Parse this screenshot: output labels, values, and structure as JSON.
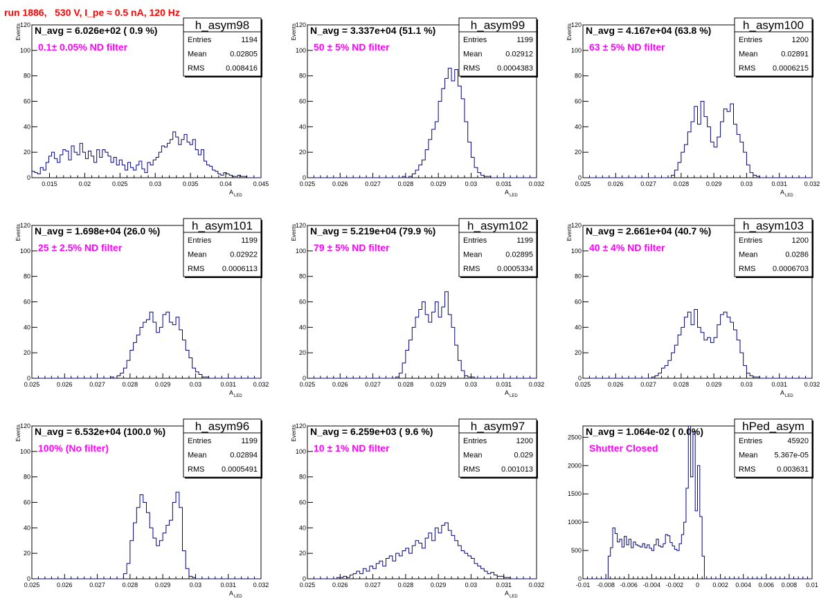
{
  "page": {
    "title": "run 1886,   530 V, I_pe ≈ 0.5 nA, 120 Hz"
  },
  "colors": {
    "hist": "#000080",
    "label": "#ff00ff",
    "title": "#ff0000"
  },
  "chart_data": [
    {
      "type": "bar",
      "hist": "h_asym98",
      "navg": "N_avg = 6.026e+02 ( 0.9 %)",
      "filter": "0.1± 0.05% ND filter",
      "stats": {
        "entries": "1194",
        "mean": "0.02805",
        "rms": "0.008416"
      },
      "xlabel": "A",
      "xlabel_sub": "LED",
      "ylabel": "Events",
      "xlim": [
        0.0125,
        0.045
      ],
      "ylim": [
        0,
        120
      ],
      "xticks": [
        0.015,
        0.02,
        0.025,
        0.03,
        0.035,
        0.04,
        0.045
      ],
      "xticklabels": [
        "0.015",
        "0.02",
        "0.025",
        "0.03",
        "0.035",
        "0.04",
        "0.045"
      ],
      "yticks": [
        0,
        20,
        40,
        60,
        80,
        100,
        120
      ],
      "yticklabels": [
        "0",
        "20",
        "40",
        "60",
        "80",
        "100",
        "120"
      ],
      "bins": {
        "start": 0.0125,
        "width": 0.0004,
        "values": [
          5,
          4,
          3,
          8,
          6,
          12,
          17,
          20,
          15,
          12,
          18,
          22,
          21,
          14,
          25,
          20,
          18,
          27,
          20,
          15,
          21,
          17,
          12,
          22,
          16,
          22,
          20,
          17,
          12,
          16,
          10,
          14,
          10,
          6,
          12,
          8,
          6,
          10,
          13,
          7,
          4,
          12,
          10,
          14,
          16,
          20,
          25,
          24,
          27,
          30,
          36,
          32,
          26,
          30,
          34,
          28,
          26,
          30,
          22,
          18,
          22,
          13,
          10,
          9,
          6,
          5,
          3,
          2,
          4,
          3,
          2,
          1,
          1,
          2,
          1,
          1,
          0,
          0,
          0,
          0,
          0,
          0
        ]
      }
    },
    {
      "type": "bar",
      "hist": "h_asym99",
      "navg": "N_avg = 3.337e+04 (51.1 %)",
      "filter": "50 ± 5% ND filter",
      "stats": {
        "entries": "1199",
        "mean": "0.02912",
        "rms": "0.0004383"
      },
      "xlabel": "A",
      "xlabel_sub": "LED",
      "ylabel": "Events",
      "xlim": [
        0.025,
        0.032
      ],
      "ylim": [
        0,
        120
      ],
      "xticks": [
        0.025,
        0.026,
        0.027,
        0.028,
        0.029,
        0.03,
        0.031,
        0.032
      ],
      "xticklabels": [
        "0.025",
        "0.026",
        "0.027",
        "0.028",
        "0.029",
        "0.03",
        "0.031",
        "0.032"
      ],
      "yticks": [
        0,
        20,
        40,
        60,
        80,
        100,
        120
      ],
      "yticklabels": [
        "0",
        "20",
        "40",
        "60",
        "80",
        "100",
        "120"
      ],
      "bins": {
        "start": 0.025,
        "width": 0.0001,
        "values": [
          0,
          0,
          0,
          0,
          0,
          0,
          0,
          0,
          0,
          0,
          0,
          0,
          0,
          0,
          0,
          0,
          0,
          0,
          0,
          0,
          0,
          0,
          0,
          0,
          0,
          0,
          0,
          0,
          0,
          1,
          0,
          1,
          3,
          6,
          10,
          14,
          22,
          30,
          38,
          44,
          60,
          70,
          78,
          86,
          76,
          85,
          72,
          62,
          44,
          28,
          16,
          8,
          4,
          2,
          1,
          1,
          0,
          0,
          0,
          0,
          0,
          0,
          0,
          0,
          0,
          0,
          0,
          0,
          0,
          0
        ]
      }
    },
    {
      "type": "bar",
      "hist": "h_asym100",
      "navg": "N_avg = 4.167e+04 (63.8 %)",
      "filter": "63 ± 5% ND filter",
      "stats": {
        "entries": "1200",
        "mean": "0.02891",
        "rms": "0.0006215"
      },
      "xlabel": "A",
      "xlabel_sub": "LED",
      "ylabel": "Events",
      "xlim": [
        0.025,
        0.032
      ],
      "ylim": [
        0,
        120
      ],
      "xticks": [
        0.025,
        0.026,
        0.027,
        0.028,
        0.029,
        0.03,
        0.031,
        0.032
      ],
      "xticklabels": [
        "0.025",
        "0.026",
        "0.027",
        "0.028",
        "0.029",
        "0.03",
        "0.031",
        "0.032"
      ],
      "yticks": [
        0,
        20,
        40,
        60,
        80,
        100,
        120
      ],
      "yticklabels": [
        "0",
        "20",
        "40",
        "60",
        "80",
        "100",
        "120"
      ],
      "bins": {
        "start": 0.025,
        "width": 0.0001,
        "values": [
          0,
          0,
          0,
          0,
          0,
          0,
          0,
          0,
          0,
          0,
          0,
          0,
          0,
          0,
          0,
          0,
          0,
          0,
          0,
          0,
          0,
          0,
          0,
          0,
          0,
          0,
          0,
          2,
          6,
          12,
          20,
          26,
          36,
          44,
          56,
          42,
          60,
          48,
          40,
          28,
          24,
          32,
          44,
          54,
          52,
          58,
          42,
          34,
          28,
          20,
          10,
          4,
          2,
          1,
          0,
          0,
          0,
          0,
          0,
          0,
          0,
          0,
          0,
          0,
          0,
          0,
          0,
          0,
          0,
          0
        ]
      }
    },
    {
      "type": "bar",
      "hist": "h_asym101",
      "navg": "N_avg = 1.698e+04 (26.0 %)",
      "filter": "25 ± 2.5% ND filter",
      "stats": {
        "entries": "1199",
        "mean": "0.02922",
        "rms": "0.0006113"
      },
      "xlabel": "A",
      "xlabel_sub": "LED",
      "ylabel": "Events",
      "xlim": [
        0.025,
        0.032
      ],
      "ylim": [
        0,
        120
      ],
      "xticks": [
        0.025,
        0.026,
        0.027,
        0.028,
        0.029,
        0.03,
        0.031,
        0.032
      ],
      "xticklabels": [
        "0.025",
        "0.026",
        "0.027",
        "0.028",
        "0.029",
        "0.03",
        "0.031",
        "0.032"
      ],
      "yticks": [
        0,
        20,
        40,
        60,
        80,
        100,
        120
      ],
      "yticklabels": [
        "0",
        "20",
        "40",
        "60",
        "80",
        "100",
        "120"
      ],
      "bins": {
        "start": 0.025,
        "width": 0.0001,
        "values": [
          0,
          0,
          0,
          0,
          0,
          0,
          0,
          0,
          0,
          0,
          0,
          0,
          0,
          0,
          0,
          0,
          0,
          0,
          0,
          0,
          0,
          0,
          0,
          0,
          1,
          0,
          2,
          4,
          8,
          14,
          22,
          28,
          34,
          40,
          44,
          46,
          52,
          44,
          36,
          40,
          50,
          52,
          44,
          42,
          48,
          38,
          30,
          22,
          16,
          8,
          5,
          3,
          1,
          1,
          0,
          0,
          0,
          0,
          0,
          0,
          0,
          0,
          0,
          0,
          0,
          0,
          0,
          0,
          0,
          0
        ]
      }
    },
    {
      "type": "bar",
      "hist": "h_asym102",
      "navg": "N_avg = 5.219e+04 (79.9 %)",
      "filter": "79 ± 5% ND filter",
      "stats": {
        "entries": "1199",
        "mean": "0.02895",
        "rms": "0.0005334"
      },
      "xlabel": "A",
      "xlabel_sub": "LED",
      "ylabel": "Events",
      "xlim": [
        0.025,
        0.032
      ],
      "ylim": [
        0,
        120
      ],
      "xticks": [
        0.025,
        0.026,
        0.027,
        0.028,
        0.029,
        0.03,
        0.031,
        0.032
      ],
      "xticklabels": [
        "0.025",
        "0.026",
        "0.027",
        "0.028",
        "0.029",
        "0.03",
        "0.031",
        "0.032"
      ],
      "yticks": [
        0,
        20,
        40,
        60,
        80,
        100,
        120
      ],
      "yticklabels": [
        "0",
        "20",
        "40",
        "60",
        "80",
        "100",
        "120"
      ],
      "bins": {
        "start": 0.025,
        "width": 0.0001,
        "values": [
          0,
          0,
          0,
          0,
          0,
          0,
          0,
          0,
          0,
          0,
          0,
          0,
          0,
          0,
          0,
          0,
          0,
          0,
          0,
          0,
          0,
          0,
          0,
          0,
          0,
          0,
          0,
          1,
          4,
          12,
          22,
          30,
          40,
          48,
          54,
          60,
          50,
          44,
          52,
          60,
          48,
          56,
          68,
          50,
          40,
          26,
          14,
          6,
          2,
          1,
          1,
          0,
          0,
          0,
          0,
          0,
          0,
          0,
          0,
          0,
          0,
          0,
          0,
          0,
          0,
          0,
          0,
          0,
          0,
          0
        ]
      }
    },
    {
      "type": "bar",
      "hist": "h_asym103",
      "navg": "N_avg = 2.661e+04 (40.7 %)",
      "filter": "40 ± 4% ND filter",
      "stats": {
        "entries": "1200",
        "mean": "0.0286",
        "rms": "0.0006703"
      },
      "xlabel": "A",
      "xlabel_sub": "LED",
      "ylabel": "Events",
      "xlim": [
        0.025,
        0.032
      ],
      "ylim": [
        0,
        120
      ],
      "xticks": [
        0.025,
        0.026,
        0.027,
        0.028,
        0.029,
        0.03,
        0.031,
        0.032
      ],
      "xticklabels": [
        "0.025",
        "0.026",
        "0.027",
        "0.028",
        "0.029",
        "0.03",
        "0.031",
        "0.032"
      ],
      "yticks": [
        0,
        20,
        40,
        60,
        80,
        100,
        120
      ],
      "yticklabels": [
        "0",
        "20",
        "40",
        "60",
        "80",
        "100",
        "120"
      ],
      "bins": {
        "start": 0.025,
        "width": 0.0001,
        "values": [
          0,
          0,
          0,
          0,
          0,
          0,
          0,
          0,
          0,
          0,
          0,
          0,
          0,
          0,
          0,
          0,
          0,
          0,
          0,
          0,
          0,
          1,
          2,
          4,
          8,
          10,
          14,
          20,
          26,
          34,
          40,
          48,
          52,
          42,
          54,
          40,
          36,
          30,
          32,
          28,
          32,
          42,
          50,
          52,
          48,
          44,
          38,
          30,
          20,
          10,
          4,
          2,
          1,
          1,
          0,
          0,
          0,
          0,
          0,
          0,
          0,
          0,
          0,
          0,
          0,
          0,
          0,
          0,
          0,
          0
        ]
      }
    },
    {
      "type": "bar",
      "hist": "h_asym96",
      "navg": "N_avg = 6.532e+04 (100.0 %)",
      "filter": "100% (No filter)",
      "stats": {
        "entries": "1199",
        "mean": "0.02894",
        "rms": "0.0005491"
      },
      "xlabel": "A",
      "xlabel_sub": "LED",
      "ylabel": "Events",
      "xlim": [
        0.025,
        0.032
      ],
      "ylim": [
        0,
        120
      ],
      "xticks": [
        0.025,
        0.026,
        0.027,
        0.028,
        0.029,
        0.03,
        0.031,
        0.032
      ],
      "xticklabels": [
        "0.025",
        "0.026",
        "0.027",
        "0.028",
        "0.029",
        "0.03",
        "0.031",
        "0.032"
      ],
      "yticks": [
        0,
        20,
        40,
        60,
        80,
        100,
        120
      ],
      "yticklabels": [
        "0",
        "20",
        "40",
        "60",
        "80",
        "100",
        "120"
      ],
      "bins": {
        "start": 0.025,
        "width": 0.0001,
        "values": [
          0,
          0,
          0,
          0,
          0,
          0,
          0,
          0,
          0,
          0,
          0,
          0,
          0,
          0,
          0,
          0,
          0,
          0,
          0,
          0,
          0,
          0,
          0,
          0,
          0,
          0,
          0,
          0,
          4,
          12,
          30,
          44,
          56,
          66,
          60,
          52,
          40,
          32,
          26,
          30,
          36,
          42,
          46,
          60,
          68,
          56,
          22,
          8,
          2,
          1,
          0,
          0,
          0,
          0,
          0,
          0,
          0,
          0,
          0,
          0,
          0,
          0,
          0,
          0,
          0,
          0,
          0,
          0,
          0,
          0
        ]
      }
    },
    {
      "type": "bar",
      "hist": "h_asym97",
      "navg": "N_avg = 6.259e+03 ( 9.6 %)",
      "filter": "10 ± 1% ND filter",
      "stats": {
        "entries": "1200",
        "mean": "0.029",
        "rms": "0.001013"
      },
      "xlabel": "A",
      "xlabel_sub": "LED",
      "ylabel": "Events",
      "xlim": [
        0.025,
        0.032
      ],
      "ylim": [
        0,
        120
      ],
      "xticks": [
        0.025,
        0.026,
        0.027,
        0.028,
        0.029,
        0.03,
        0.031,
        0.032
      ],
      "xticklabels": [
        "0.025",
        "0.026",
        "0.027",
        "0.028",
        "0.029",
        "0.03",
        "0.031",
        "0.032"
      ],
      "yticks": [
        0,
        20,
        40,
        60,
        80,
        100,
        120
      ],
      "yticklabels": [
        "0",
        "20",
        "40",
        "60",
        "80",
        "100",
        "120"
      ],
      "bins": {
        "start": 0.025,
        "width": 0.0001,
        "values": [
          0,
          0,
          0,
          0,
          0,
          0,
          0,
          0,
          0,
          1,
          1,
          2,
          1,
          3,
          4,
          6,
          4,
          8,
          6,
          10,
          8,
          12,
          14,
          10,
          16,
          18,
          14,
          20,
          18,
          22,
          24,
          20,
          26,
          30,
          28,
          24,
          32,
          36,
          30,
          40,
          36,
          42,
          44,
          38,
          34,
          30,
          26,
          22,
          20,
          18,
          16,
          12,
          10,
          8,
          6,
          4,
          5,
          3,
          2,
          2,
          1,
          1,
          0,
          0,
          0,
          0,
          0,
          0,
          0,
          0
        ]
      }
    },
    {
      "type": "bar",
      "hist": "hPed_asym",
      "navg": "N_avg = 1.064e-02 ( 0.0%)",
      "filter": "Shutter Closed",
      "stats": {
        "entries": "45920",
        "mean": "5.367e-05",
        "rms": "0.003631"
      },
      "xlabel": "",
      "xlabel_sub": "",
      "ylabel": "",
      "xlim": [
        -0.01,
        0.01
      ],
      "ylim": [
        0,
        2700
      ],
      "xticks": [
        -0.01,
        -0.008,
        -0.006,
        -0.004,
        -0.002,
        0,
        0.002,
        0.004,
        0.006,
        0.008,
        0.01
      ],
      "xticklabels": [
        "-0.01",
        "-0.008",
        "-0.006",
        "-0.004",
        "-0.002",
        "0",
        "0.002",
        "0.004",
        "0.006",
        "0.008",
        "0.01"
      ],
      "yticks": [
        0,
        500,
        1000,
        1500,
        2000,
        2500
      ],
      "yticklabels": [
        "0",
        "500",
        "1000",
        "1500",
        "2000",
        "2500"
      ],
      "bins": {
        "start": -0.01,
        "width": 0.0002,
        "values": [
          0,
          0,
          0,
          0,
          0,
          0,
          0,
          0,
          0,
          0,
          0,
          400,
          550,
          900,
          800,
          650,
          700,
          560,
          750,
          600,
          700,
          550,
          650,
          600,
          580,
          560,
          620,
          550,
          600,
          540,
          500,
          600,
          700,
          580,
          560,
          620,
          780,
          760,
          640,
          580,
          520,
          500,
          620,
          780,
          1000,
          1600,
          2700,
          1800,
          2600,
          1200,
          2000,
          1100,
          400,
          0,
          0,
          0,
          0,
          0,
          0,
          0,
          0,
          0,
          0,
          0,
          0,
          0,
          0,
          0,
          0,
          0,
          0,
          0,
          0,
          0,
          0,
          0,
          0,
          0,
          0,
          0,
          0,
          0,
          0,
          0,
          0,
          0,
          0,
          0,
          0,
          0,
          0,
          0,
          0,
          0,
          0,
          0,
          0,
          0,
          0,
          0
        ]
      }
    }
  ]
}
